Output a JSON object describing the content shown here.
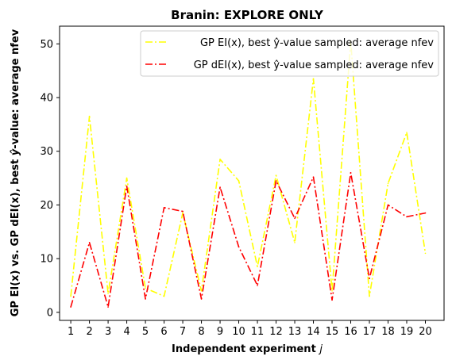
{
  "chart_data": {
    "type": "line",
    "title": "Branin: EXPLORE ONLY",
    "xlabel": "Independent experiment j",
    "ylabel": "GP EI(x) vs. GP dEI(x), best ŷ-value: average nfev",
    "x": [
      1,
      2,
      3,
      4,
      5,
      6,
      7,
      8,
      9,
      10,
      11,
      12,
      13,
      14,
      15,
      16,
      17,
      18,
      19,
      20
    ],
    "xticks": [
      "1",
      "2",
      "3",
      "4",
      "5",
      "6",
      "7",
      "8",
      "9",
      "10",
      "11",
      "12",
      "13",
      "14",
      "15",
      "16",
      "17",
      "18",
      "19",
      "20"
    ],
    "xlim": [
      0.4,
      21.0
    ],
    "ylim": [
      -1.5,
      53.3
    ],
    "yticks": [
      0,
      10,
      20,
      30,
      40,
      50
    ],
    "grid": false,
    "legend_position": "top-right",
    "series": [
      {
        "name": "GP EI(x), best ŷ-value sampled: average nfev",
        "color": "#ffff00",
        "line_style": "dashdot",
        "values": [
          3.0,
          36.5,
          3.5,
          25.0,
          4.5,
          3.0,
          18.5,
          4.0,
          28.5,
          24.5,
          8.5,
          25.5,
          13.0,
          43.5,
          4.0,
          50.5,
          3.0,
          24.0,
          33.5,
          11.0
        ]
      },
      {
        "name": "GP dEI(x), best ŷ-value sampled: average nfev",
        "color": "#ff0000",
        "line_style": "dashdot",
        "values": [
          1.0,
          13.0,
          1.0,
          23.5,
          2.5,
          19.5,
          18.8,
          2.5,
          23.3,
          12.2,
          5.0,
          24.5,
          17.5,
          25.2,
          2.3,
          26.0,
          6.3,
          20.0,
          17.8,
          18.5
        ]
      }
    ]
  }
}
